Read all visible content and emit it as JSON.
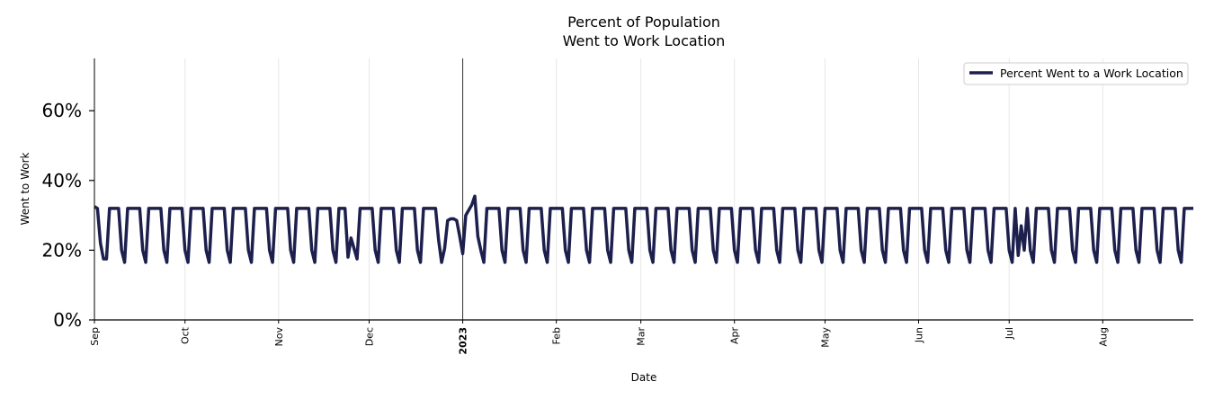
{
  "chart_data": {
    "type": "line",
    "title_line1": "Percent of Population",
    "title_line2": "Went to Work Location",
    "xlabel": "Date",
    "ylabel": "Went to Work",
    "ylim": [
      0,
      0.75
    ],
    "yticks": [
      0,
      0.2,
      0.4,
      0.6
    ],
    "ytick_labels": [
      "0%",
      "20%",
      "40%",
      "60%"
    ],
    "grid": "vertical",
    "legend_position": "top-right",
    "x_start": "2022-09-01",
    "x_end": "2023-08-31",
    "xticks": [
      {
        "date": "2022-09-01",
        "label": "Sep",
        "bold": false
      },
      {
        "date": "2022-10-01",
        "label": "Oct",
        "bold": false
      },
      {
        "date": "2022-11-01",
        "label": "Nov",
        "bold": false
      },
      {
        "date": "2022-12-01",
        "label": "Dec",
        "bold": false
      },
      {
        "date": "2023-01-01",
        "label": "2023",
        "bold": true
      },
      {
        "date": "2023-02-01",
        "label": "Feb",
        "bold": false
      },
      {
        "date": "2023-03-01",
        "label": "Mar",
        "bold": false
      },
      {
        "date": "2023-04-01",
        "label": "Apr",
        "bold": false
      },
      {
        "date": "2023-05-01",
        "label": "May",
        "bold": false
      },
      {
        "date": "2023-06-01",
        "label": "Jun",
        "bold": false
      },
      {
        "date": "2023-07-01",
        "label": "Jul",
        "bold": false
      },
      {
        "date": "2023-08-01",
        "label": "Aug",
        "bold": false
      }
    ],
    "year_marker_date": "2023-01-01",
    "series": [
      {
        "name": "Percent Went to a Work Location",
        "color": "#1d1f4d",
        "pattern": {
          "weekday_value": 0.32,
          "saturday_value": 0.2,
          "sunday_value": 0.165
        },
        "points": [
          {
            "date": "2022-09-01",
            "value": 0.325
          },
          {
            "date": "2022-09-02",
            "value": 0.32
          },
          {
            "date": "2022-09-03",
            "value": 0.22
          },
          {
            "date": "2022-09-04",
            "value": 0.175
          },
          {
            "date": "2022-09-05",
            "value": 0.175
          },
          {
            "date": "2022-11-24",
            "value": 0.18
          },
          {
            "date": "2022-11-25",
            "value": 0.235
          },
          {
            "date": "2022-11-26",
            "value": 0.205
          },
          {
            "date": "2022-11-27",
            "value": 0.175
          },
          {
            "date": "2022-12-24",
            "value": 0.23
          },
          {
            "date": "2022-12-25",
            "value": 0.165
          },
          {
            "date": "2022-12-26",
            "value": 0.205
          },
          {
            "date": "2022-12-27",
            "value": 0.285
          },
          {
            "date": "2022-12-28",
            "value": 0.29
          },
          {
            "date": "2022-12-29",
            "value": 0.29
          },
          {
            "date": "2022-12-30",
            "value": 0.285
          },
          {
            "date": "2022-12-31",
            "value": 0.24
          },
          {
            "date": "2023-01-01",
            "value": 0.19
          },
          {
            "date": "2023-01-02",
            "value": 0.3
          },
          {
            "date": "2023-01-03",
            "value": 0.315
          },
          {
            "date": "2023-01-04",
            "value": 0.33
          },
          {
            "date": "2023-01-05",
            "value": 0.355
          },
          {
            "date": "2023-01-06",
            "value": 0.24
          },
          {
            "date": "2023-07-04",
            "value": 0.185
          },
          {
            "date": "2023-07-05",
            "value": 0.27
          },
          {
            "date": "2023-07-06",
            "value": 0.2
          },
          {
            "date": "2023-08-31",
            "value": 0.32
          }
        ]
      }
    ]
  }
}
